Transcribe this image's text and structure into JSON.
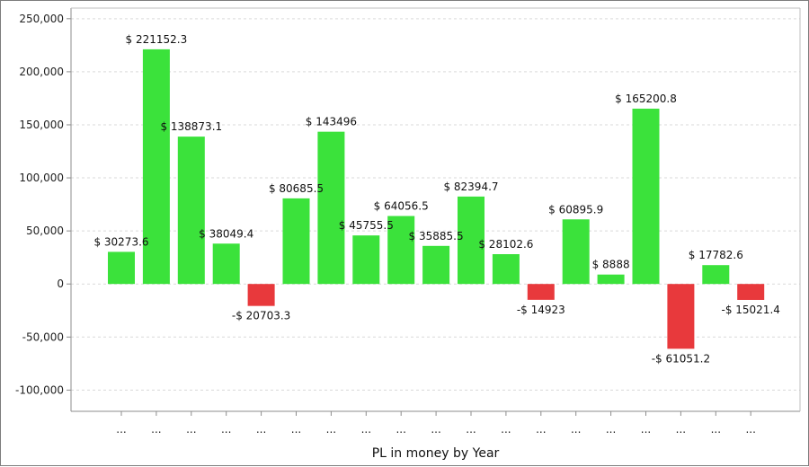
{
  "chart_data": {
    "type": "bar",
    "title": "",
    "xlabel": "PL in money by Year",
    "ylabel": "",
    "ylim": [
      -120000,
      260000
    ],
    "yticks": [
      -100000,
      -50000,
      0,
      50000,
      100000,
      150000,
      200000,
      250000
    ],
    "ytick_labels": [
      "-100,000",
      "-50,000",
      "0",
      "50,000",
      "100,000",
      "150,000",
      "200,000",
      "250,000"
    ],
    "grid": true,
    "legend": "none",
    "categories": [
      "...",
      "...",
      "...",
      "...",
      "...",
      "...",
      "...",
      "...",
      "...",
      "...",
      "...",
      "...",
      "...",
      "...",
      "...",
      "...",
      "...",
      "...",
      "..."
    ],
    "values": [
      30273.6,
      221152.3,
      138873.1,
      38049.4,
      -20703.3,
      80685.5,
      143496,
      45755.5,
      64056.5,
      35885.5,
      82394.7,
      28102.6,
      -14923,
      60895.9,
      8888,
      165200.8,
      -61051.2,
      17782.6,
      -15021.4
    ],
    "data_labels": [
      "$ 30273.6",
      "$ 221152.3",
      "$ 138873.1",
      "$ 38049.4",
      "-$ 20703.3",
      "$ 80685.5",
      "$ 143496",
      "$ 45755.5",
      "$ 64056.5",
      "$ 35885.5",
      "$ 82394.7",
      "$ 28102.6",
      "-$ 14923",
      "$ 60895.9",
      "$ 8888",
      "$ 165200.8",
      "-$ 61051.2",
      "$ 17782.6",
      "-$ 15021.4"
    ],
    "colors": {
      "positive": "#3be23b",
      "negative": "#e8393c",
      "axis": "#8c8c8c",
      "grid": "#d9d9d9"
    }
  }
}
